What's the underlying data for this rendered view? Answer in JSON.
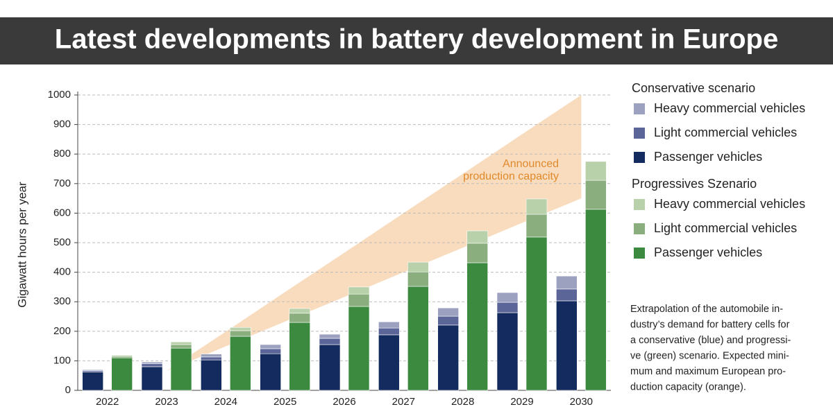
{
  "chart_data": {
    "type": "grouped-stacked-bar",
    "title": "Latest developments in battery development in Europe",
    "y_label": "Gigawatt hours per year",
    "categories": [
      "2022",
      "2023",
      "2024",
      "2025",
      "2026",
      "2027",
      "2028",
      "2029",
      "2030"
    ],
    "ylim": [
      0,
      1000
    ],
    "yticks": [
      0,
      100,
      200,
      300,
      400,
      500,
      600,
      700,
      800,
      900,
      1000
    ],
    "grid": true,
    "groups": [
      {
        "name": "Conservative scenario",
        "series": [
          {
            "name": "Passenger vehicles",
            "color": "#142b5f",
            "values": [
              62,
              80,
              103,
              124,
              155,
              188,
              221,
              263,
              303
            ]
          },
          {
            "name": "Light commercial vehicles",
            "color": "#5b6597",
            "values": [
              5,
              10,
              10,
              17,
              21,
              23,
              30,
              35,
              40
            ]
          },
          {
            "name": "Heavy commercial vehicles",
            "color": "#9c a1c0",
            "values": [
              3,
              6,
              10,
              14,
              14,
              21,
              28,
              33,
              44
            ]
          }
        ]
      },
      {
        "name": "Progressives Szenario",
        "series": [
          {
            "name": "Passenger vehicles",
            "color": "#3c8a3f",
            "values": [
              110,
              143,
              183,
              230,
              284,
              352,
              432,
              519,
              613
            ]
          },
          {
            "name": "Light commercial vehicles",
            "color": "#8aae7d",
            "values": [
              5,
              12,
              19,
              31,
              42,
              49,
              66,
              77,
              98
            ]
          },
          {
            "name": "Heavy commercial vehicles",
            "color": "#b9d1aa",
            "values": [
              4,
              9,
              11,
              16,
              24,
              33,
              42,
              52,
              64
            ]
          }
        ]
      }
    ],
    "capacity": {
      "label": [
        "Announced",
        "production capacity"
      ],
      "color": "#f9dcbd",
      "label_color": "#e0892a",
      "min": [
        null,
        66,
        149,
        233,
        316,
        400,
        483,
        567,
        650
      ],
      "max": [
        null,
        66,
        199,
        333,
        466,
        600,
        733,
        867,
        1000
      ]
    },
    "note": [
      "Extrapolation of the automobile in-",
      "dustry’s demand for battery cells for",
      "a conservative (blue) and progressi-",
      "ve (green) scenario. Expected mini-",
      "mum and maximum European pro-",
      "duction capacity (orange)."
    ]
  }
}
